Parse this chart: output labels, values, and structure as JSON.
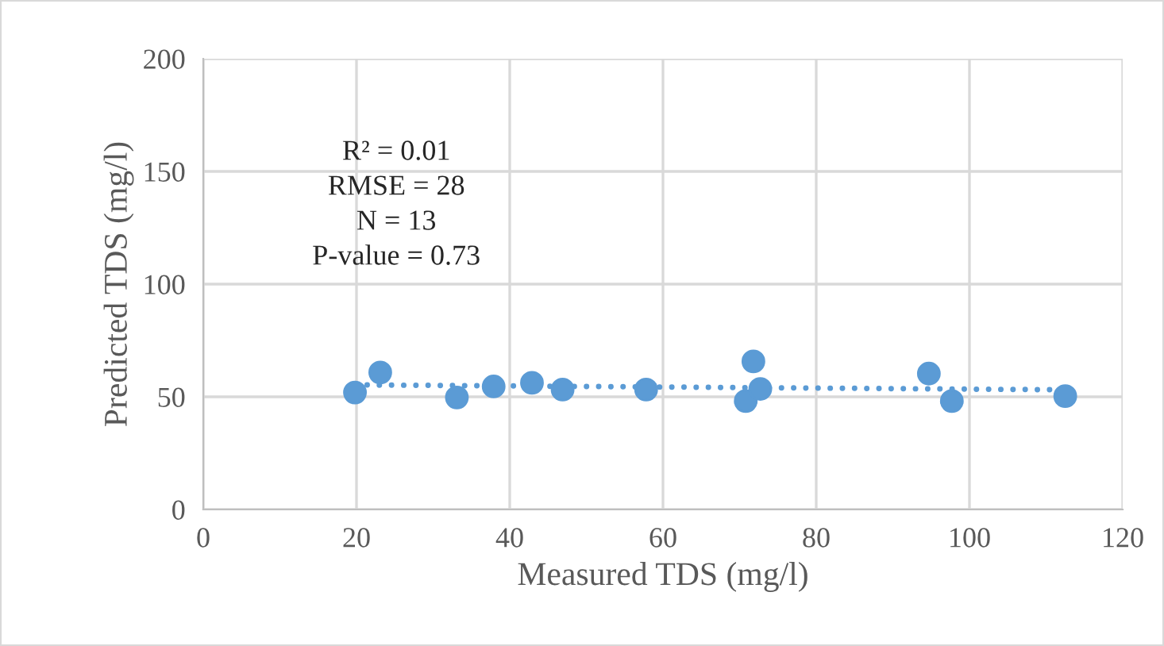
{
  "chart_data": {
    "type": "scatter",
    "xlabel": "Measured TDS (mg/l)",
    "ylabel": "Predicted TDS (mg/l)",
    "annotations": [
      "R² = 0.01\nRMSE = 28\nN = 13\nP-value = 0.73"
    ],
    "series": [
      {
        "color": "#5b9bd5",
        "marker": "circle",
        "x": [
          19.8,
          23.1,
          33.1,
          37.9,
          42.9,
          46.9,
          57.8,
          70.8,
          71.8,
          72.7,
          94.7,
          97.7,
          112.5
        ],
        "values": [
          51.9,
          60.8,
          49.7,
          54.6,
          56.2,
          53.2,
          53.2,
          48.1,
          65.7,
          53.5,
          60.3,
          48.1,
          50.3
        ]
      },
      {
        "type": "line",
        "color": "#5b9bd5",
        "line_style": "dotted",
        "x": [
          19.8,
          112.5
        ],
        "values": [
          55.3,
          53.1
        ]
      }
    ],
    "xlim": [
      0,
      120
    ],
    "xticks": [
      0,
      20,
      40,
      60,
      80,
      100,
      120
    ],
    "ylim": [
      0,
      200
    ],
    "yticks": [
      0,
      50,
      100,
      150,
      200
    ],
    "grid": true
  }
}
